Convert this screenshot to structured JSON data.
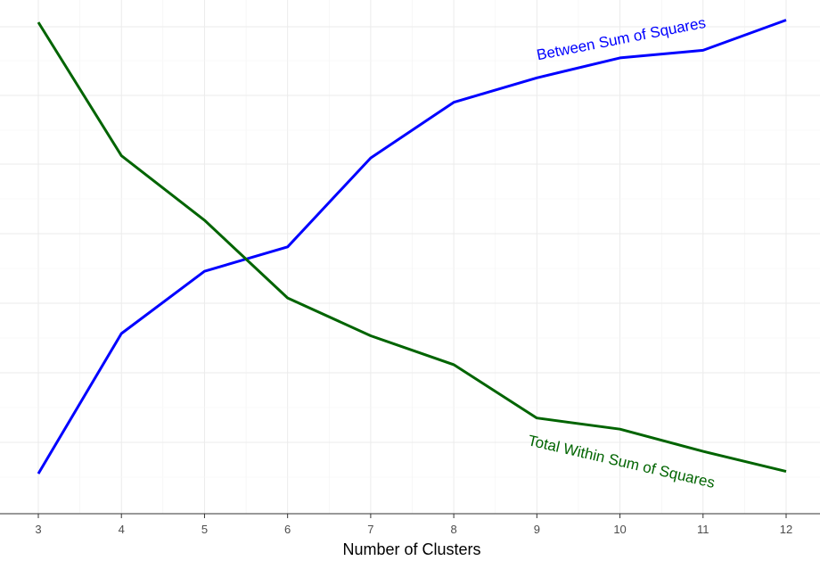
{
  "chart_data": {
    "type": "line",
    "xlabel": "Number of Clusters",
    "ylabel": "",
    "x": [
      3,
      4,
      5,
      6,
      7,
      8,
      9,
      10,
      11,
      12
    ],
    "ylim": [
      0,
      100
    ],
    "grid": true,
    "legend": "none",
    "series": [
      {
        "name": "Between Sum of Squares",
        "color": "#0000ff",
        "values": [
          5,
          36.5,
          50.5,
          56,
          76,
          88.5,
          94,
          98.5,
          100.2,
          107
        ]
      },
      {
        "name": "Total Within Sum of Squares",
        "color": "#006400",
        "values": [
          106.5,
          76.5,
          62,
          44.5,
          36,
          29.5,
          17.5,
          15,
          10,
          5.5
        ]
      }
    ]
  }
}
